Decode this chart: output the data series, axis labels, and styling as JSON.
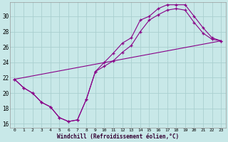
{
  "xlabel": "Windchill (Refroidissement éolien,°C)",
  "bg_color": "#c8e8e8",
  "grid_color": "#aacfcf",
  "line_color": "#880088",
  "xlim_min": -0.5,
  "xlim_max": 23.5,
  "ylim_min": 15.5,
  "ylim_max": 31.8,
  "xticks": [
    0,
    1,
    2,
    3,
    4,
    5,
    6,
    7,
    8,
    9,
    10,
    11,
    12,
    13,
    14,
    15,
    16,
    17,
    18,
    19,
    20,
    21,
    22,
    23
  ],
  "yticks": [
    16,
    18,
    20,
    22,
    24,
    26,
    28,
    30
  ],
  "line1_x": [
    0,
    1,
    2,
    3,
    4,
    5,
    6,
    7,
    8,
    9,
    10,
    11,
    12,
    13,
    14,
    15,
    16,
    17,
    18,
    19,
    20,
    21,
    22,
    23
  ],
  "line1_y": [
    21.8,
    20.7,
    20.0,
    18.8,
    18.2,
    16.8,
    16.3,
    16.5,
    19.2,
    22.8,
    24.0,
    25.2,
    26.5,
    27.2,
    29.5,
    30.0,
    31.0,
    31.5,
    31.5,
    31.5,
    30.0,
    28.5,
    27.2,
    26.8
  ],
  "line2_x": [
    0,
    1,
    2,
    3,
    4,
    5,
    6,
    7,
    8,
    9,
    10,
    11,
    12,
    13,
    14,
    15,
    16,
    17,
    18,
    19,
    20,
    21,
    22,
    23
  ],
  "line2_y": [
    21.8,
    20.7,
    20.0,
    18.8,
    18.2,
    16.8,
    16.3,
    16.5,
    19.2,
    22.8,
    23.5,
    24.2,
    25.3,
    26.2,
    28.0,
    29.5,
    30.2,
    30.8,
    31.0,
    30.8,
    29.2,
    27.8,
    27.0,
    26.8
  ],
  "line3_x": [
    0,
    23
  ],
  "line3_y": [
    21.8,
    26.8
  ]
}
